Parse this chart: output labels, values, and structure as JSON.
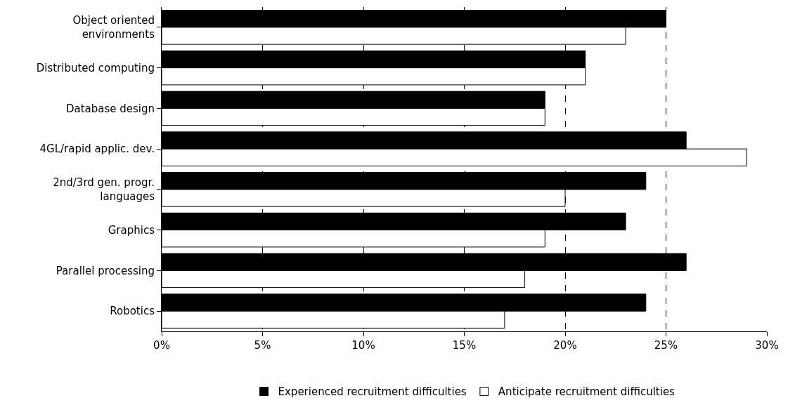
{
  "chart_data": {
    "type": "bar",
    "orientation": "horizontal",
    "categories": [
      "Object oriented environments",
      "Distributed computing",
      "Database design",
      "4GL/rapid applic. dev.",
      "2nd/3rd gen. progr. languages",
      "Graphics",
      "Parallel processing",
      "Robotics"
    ],
    "series": [
      {
        "name": "Experienced recruitment difficulties",
        "color": "#000000",
        "values": [
          25,
          21,
          19,
          26,
          24,
          23,
          26,
          24
        ]
      },
      {
        "name": "Anticipate recruitment difficulties",
        "color": "#ffffff",
        "values": [
          23,
          21,
          19,
          29,
          20,
          19,
          18,
          17
        ]
      }
    ],
    "xlim": [
      0,
      30
    ],
    "xticks": [
      {
        "value": 0,
        "label": "0%"
      },
      {
        "value": 5,
        "label": "5%"
      },
      {
        "value": 10,
        "label": "10%"
      },
      {
        "value": 15,
        "label": "15%"
      },
      {
        "value": 20,
        "label": "20%"
      },
      {
        "value": 25,
        "label": "25%"
      },
      {
        "value": 30,
        "label": "30%"
      }
    ],
    "grid": "x",
    "line_style": "dashed",
    "legend": "bottom"
  }
}
